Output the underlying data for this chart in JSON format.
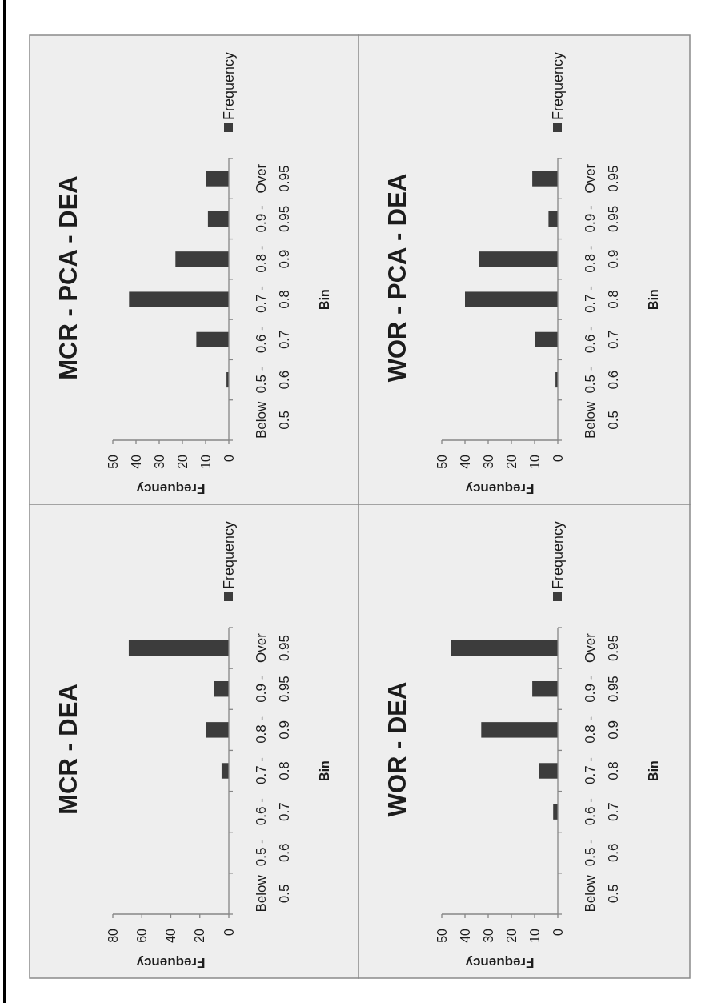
{
  "chart_data": [
    {
      "type": "bar",
      "orientation": "horizontal",
      "title": "MCR - PCA - DEA",
      "categories": [
        "Over 0.95",
        "0.9 - 0.95",
        "0.8 - 0.9",
        "0.7 - 0.8",
        "0.6 - 0.7",
        "0.5 - 0.6",
        "Below 0.5"
      ],
      "series": [
        {
          "name": "Frequency",
          "color": "#3c3c3c",
          "values": [
            10,
            9,
            23,
            43,
            14,
            1,
            0
          ]
        }
      ],
      "xlabel": "Frequency",
      "ylabel": "Bin",
      "xlim": [
        50,
        0
      ],
      "xticks": [
        50,
        40,
        30,
        20,
        10,
        0
      ],
      "legend": "top right"
    },
    {
      "type": "bar",
      "orientation": "horizontal",
      "title": "WOR - PCA - DEA",
      "categories": [
        "Over 0.95",
        "0.9 - 0.95",
        "0.8 - 0.9",
        "0.7 - 0.8",
        "0.6 - 0.7",
        "0.5 - 0.6",
        "Below 0.5"
      ],
      "series": [
        {
          "name": "Frequency",
          "color": "#3c3c3c",
          "values": [
            11,
            4,
            34,
            40,
            10,
            1,
            0
          ]
        }
      ],
      "xlabel": "Frequency",
      "ylabel": "Bin",
      "xlim": [
        50,
        0
      ],
      "xticks": [
        50,
        40,
        30,
        20,
        10,
        0
      ],
      "legend": "top right"
    },
    {
      "type": "bar",
      "orientation": "horizontal",
      "title": "MCR - DEA",
      "categories": [
        "Over 0.95",
        "0.9 - 0.95",
        "0.8 - 0.9",
        "0.7 - 0.8",
        "0.6 - 0.7",
        "0.5 - 0.6",
        "Below 0.5"
      ],
      "series": [
        {
          "name": "Frequency",
          "color": "#3c3c3c",
          "values": [
            69,
            10,
            16,
            5,
            0,
            0,
            0
          ]
        }
      ],
      "xlabel": "Frequency",
      "ylabel": "Bin",
      "xlim": [
        80,
        0
      ],
      "xticks": [
        80,
        60,
        40,
        20,
        0
      ],
      "legend": "top right"
    },
    {
      "type": "bar",
      "orientation": "horizontal",
      "title": "WOR - DEA",
      "categories": [
        "Over 0.95",
        "0.9 - 0.95",
        "0.8 - 0.9",
        "0.7 - 0.8",
        "0.6 - 0.7",
        "0.5 - 0.6",
        "Below 0.5"
      ],
      "series": [
        {
          "name": "Frequency",
          "color": "#3c3c3c",
          "values": [
            46,
            11,
            33,
            8,
            2,
            0,
            0
          ]
        }
      ],
      "xlabel": "Frequency",
      "ylabel": "Bin",
      "xlim": [
        50,
        0
      ],
      "xticks": [
        50,
        40,
        30,
        20,
        10,
        0
      ],
      "legend": "top right"
    }
  ]
}
